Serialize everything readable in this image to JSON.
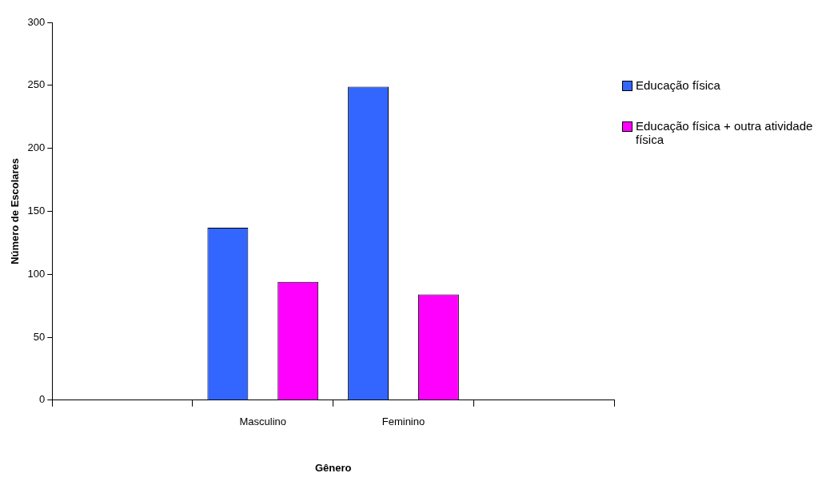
{
  "chart_data": {
    "type": "bar",
    "xlabel": "Gênero",
    "ylabel": "Número de Escolares",
    "categories": [
      null,
      "Masculino",
      "Feminino",
      null
    ],
    "series": [
      {
        "name": "Educação física",
        "color": "#3366ff",
        "values": [
          null,
          137,
          249,
          null
        ]
      },
      {
        "name": "Educação física + outra atividade física",
        "color": "#ff00ff",
        "values": [
          null,
          94,
          84,
          null
        ]
      }
    ],
    "ylim": [
      0,
      300
    ],
    "yticks": [
      0,
      50,
      100,
      150,
      200,
      250,
      300
    ],
    "legend": "right"
  }
}
